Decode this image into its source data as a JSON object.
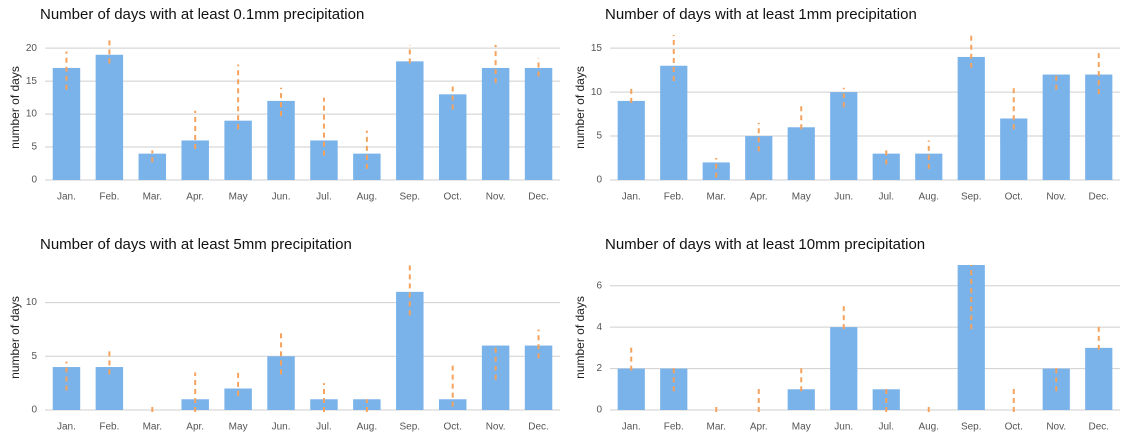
{
  "chart_data": [
    {
      "type": "bar",
      "title": "Number of days with at least 0.1mm precipitation",
      "y_label": "number of days",
      "categories": [
        "Jan.",
        "Feb.",
        "Mar.",
        "Apr.",
        "May",
        "Jun.",
        "Jul.",
        "Aug.",
        "Sep.",
        "Oct.",
        "Nov.",
        "Dec."
      ],
      "values": [
        17,
        19,
        4,
        6,
        9,
        12,
        6,
        4,
        18,
        13,
        17,
        17
      ],
      "ranges": [
        [
          14,
          19.5
        ],
        [
          18,
          21.5
        ],
        [
          3,
          4.5
        ],
        [
          5,
          10.5
        ],
        [
          8,
          17.5
        ],
        [
          10,
          14
        ],
        [
          4,
          12.5
        ],
        [
          2,
          7.5
        ],
        [
          18,
          20.5
        ],
        [
          11,
          14.5
        ],
        [
          15,
          20.5
        ],
        [
          16,
          18.5
        ]
      ],
      "color": "#7ab3ea",
      "range_color": "#f5a25d",
      "ylim": [
        0,
        22
      ],
      "yticks": [
        0,
        5,
        10,
        15,
        20
      ],
      "grid": true
    },
    {
      "type": "bar",
      "title": "Number of days with at least 1mm precipitation",
      "y_label": "number of days",
      "categories": [
        "Jan.",
        "Feb.",
        "Mar.",
        "Apr.",
        "May",
        "Jun.",
        "Jul.",
        "Aug.",
        "Sep.",
        "Oct.",
        "Nov.",
        "Dec."
      ],
      "values": [
        9,
        13,
        2,
        5,
        6,
        10,
        3,
        3,
        14,
        7,
        12,
        12
      ],
      "ranges": [
        [
          9,
          10.5
        ],
        [
          11.5,
          16.5
        ],
        [
          0.5,
          2.5
        ],
        [
          3.5,
          6.5
        ],
        [
          6,
          8.5
        ],
        [
          8.5,
          10.5
        ],
        [
          2,
          3.5
        ],
        [
          1.5,
          4.5
        ],
        [
          13,
          16.5
        ],
        [
          6,
          10.5
        ],
        [
          10.5,
          12
        ],
        [
          10,
          14.5
        ]
      ],
      "color": "#7ab3ea",
      "range_color": "#f5a25d",
      "ylim": [
        0,
        16.5
      ],
      "yticks": [
        0,
        5,
        10,
        15
      ],
      "grid": true
    },
    {
      "type": "bar",
      "title": "Number of days with at least 5mm precipitation",
      "y_label": "number of days",
      "categories": [
        "Jan.",
        "Feb.",
        "Mar.",
        "Apr.",
        "May",
        "Jun.",
        "Jul.",
        "Aug.",
        "Sep.",
        "Oct.",
        "Nov.",
        "Dec."
      ],
      "values": [
        4,
        4,
        0,
        1,
        2,
        5,
        1,
        1,
        11,
        1,
        6,
        6
      ],
      "ranges": [
        [
          2,
          4.5
        ],
        [
          3.5,
          5.5
        ],
        [
          0,
          0.5
        ],
        [
          0,
          3.5
        ],
        [
          1.5,
          3.5
        ],
        [
          3.5,
          7.5
        ],
        [
          0,
          2.5
        ],
        [
          0,
          1
        ],
        [
          9,
          13.5
        ],
        [
          0.5,
          4.5
        ],
        [
          3,
          6
        ],
        [
          5,
          7.5
        ]
      ],
      "color": "#7ab3ea",
      "range_color": "#f5a25d",
      "ylim": [
        0,
        13.5
      ],
      "yticks": [
        0,
        5,
        10
      ],
      "grid": true
    },
    {
      "type": "bar",
      "title": "Number of days with at least 10mm precipitation",
      "y_label": "number of days",
      "categories": [
        "Jan.",
        "Feb.",
        "Mar.",
        "Apr.",
        "May",
        "Jun.",
        "Jul.",
        "Aug.",
        "Sep.",
        "Oct.",
        "Nov.",
        "Dec."
      ],
      "values": [
        2,
        2,
        0,
        0,
        1,
        4,
        1,
        0,
        7,
        0,
        2,
        3
      ],
      "ranges": [
        [
          2,
          3.2
        ],
        [
          1,
          2.2
        ],
        [
          0,
          0.2
        ],
        [
          0,
          1.2
        ],
        [
          1,
          2.2
        ],
        [
          4,
          5.2
        ],
        [
          0,
          1.2
        ],
        [
          0,
          0.2
        ],
        [
          4,
          7
        ],
        [
          0,
          1.2
        ],
        [
          1,
          2.2
        ],
        [
          3,
          4.2
        ]
      ],
      "color": "#7ab3ea",
      "range_color": "#f5a25d",
      "ylim": [
        0,
        7
      ],
      "yticks": [
        0,
        2,
        4,
        6
      ],
      "grid": true
    }
  ]
}
